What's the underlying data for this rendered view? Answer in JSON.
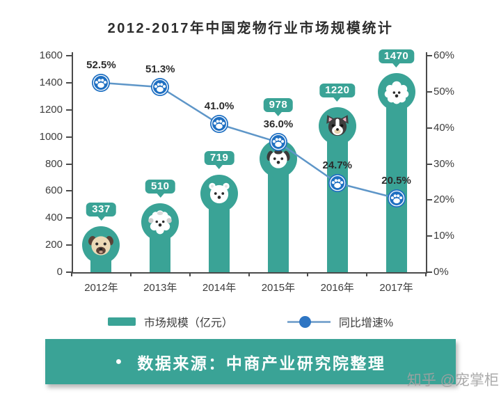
{
  "title": "2012-2017年中国宠物行业市场规模统计",
  "watermark": "知乎 @宠掌柜",
  "source_banner": {
    "bullet": "●",
    "text": "数据来源：中商产业研究院整理"
  },
  "legend": {
    "bar_label": "市场规模（亿元）",
    "line_label": "同比增速%"
  },
  "colors": {
    "teal": "#3AA396",
    "line_blue": "#5E96C8",
    "dot_blue": "#1E6FC2",
    "legend_line_blue": "#7FA8D0",
    "legend_dot_blue": "#2E75C3",
    "text_dark": "#2D2D2D",
    "watermark_gray": "#A2A2A2"
  },
  "chart_data": {
    "type": "bar+line combo",
    "title": "2012-2017年中国宠物行业市场规模统计",
    "categories": [
      "2012年",
      "2013年",
      "2014年",
      "2015年",
      "2016年",
      "2017年"
    ],
    "series": [
      {
        "name": "市场规模（亿元）",
        "type": "bar",
        "axis": "left",
        "values": [
          337,
          510,
          719,
          978,
          1220,
          1470
        ],
        "labels": [
          "337",
          "510",
          "719",
          "978",
          "1220",
          "1470"
        ],
        "icons": [
          "pug-dog-icon",
          "maltese-dog-icon",
          "samoyed-dog-icon",
          "terrier-dog-icon",
          "boston-terrier-dog-icon",
          "poodle-dog-icon"
        ]
      },
      {
        "name": "同比增速%",
        "type": "line",
        "axis": "right",
        "values": [
          52.5,
          51.3,
          41.0,
          36.0,
          24.7,
          20.5
        ],
        "labels": [
          "52.5%",
          "51.3%",
          "41.0%",
          "36.0%",
          "24.7%",
          "20.5%"
        ],
        "point_icon": "paw-icon"
      }
    ],
    "left_axis": {
      "min": 0,
      "max": 1600,
      "step": 200,
      "tick_labels": [
        "0",
        "200",
        "400",
        "600",
        "800",
        "1000",
        "1200",
        "1400",
        "1600"
      ]
    },
    "right_axis": {
      "min": 0,
      "max": 60,
      "step": 10,
      "tick_labels": [
        "0%",
        "10%",
        "20%",
        "30%",
        "40%",
        "50%",
        "60%"
      ]
    },
    "grid": false,
    "legend_position": "bottom"
  }
}
